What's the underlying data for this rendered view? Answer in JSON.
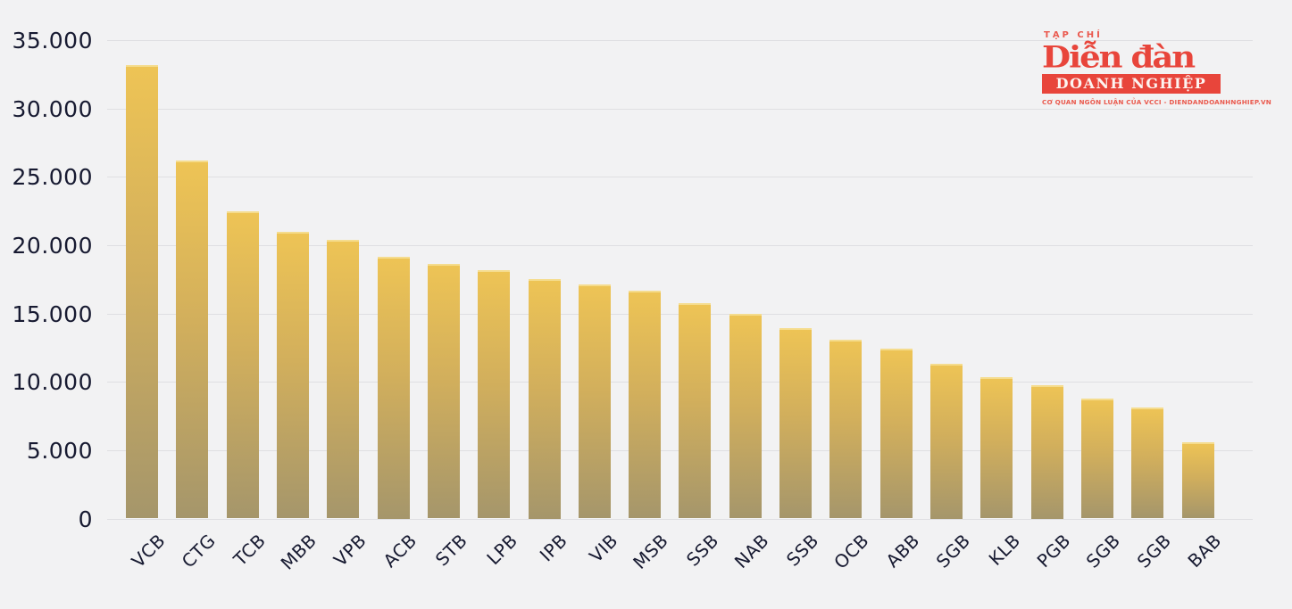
{
  "branding": {
    "tagline_top": "TẠP CHÍ",
    "title": "Diễn đàn",
    "subtitle": "DOANH NGHIỆP",
    "tagline_bottom": "CƠ QUAN NGÔN LUẬN CỦA VCCI - DIENDANDOANHNGHIEP.VN",
    "brand_red": "#e8453b"
  },
  "chart_data": {
    "type": "bar",
    "title": "",
    "xlabel": "",
    "ylabel": "",
    "categories": [
      "VCB",
      "CTG",
      "TCB",
      "MBB",
      "VPB",
      "ACB",
      "STB",
      "LPB",
      "IPB",
      "VIB",
      "MSB",
      "SSB",
      "NAB",
      "SSB",
      "OCB",
      "ABB",
      "SGB",
      "KLB",
      "PGB",
      "SGB",
      "SGB",
      "BAB"
    ],
    "values": [
      33150,
      26200,
      22500,
      21000,
      20400,
      19150,
      18650,
      18150,
      17500,
      17100,
      16650,
      15750,
      15000,
      13950,
      13100,
      12400,
      11350,
      10350,
      9750,
      8750,
      8100,
      5550
    ],
    "y_ticks": [
      {
        "value": 35000,
        "label": "35.000"
      },
      {
        "value": 30000,
        "label": "30.000"
      },
      {
        "value": 25000,
        "label": "25.000"
      },
      {
        "value": 20000,
        "label": "20.000"
      },
      {
        "value": 15000,
        "label": "15.000"
      },
      {
        "value": 10000,
        "label": "10.000"
      },
      {
        "value": 5000,
        "label": "5.000"
      },
      {
        "value": 0,
        "label": "0"
      }
    ],
    "ylim": [
      0,
      35000
    ],
    "grid": "horizontal",
    "legend_position": "none",
    "colors": {
      "background": "#f2f2f3",
      "gridline": "#dfdfe2",
      "text": "#171a31",
      "bar_gradient_top": "#eec455",
      "bar_gradient_mid": "#d2af5c",
      "bar_gradient_bottom": "#a5966b",
      "bar_top_highlight": "#f6e29b"
    }
  }
}
